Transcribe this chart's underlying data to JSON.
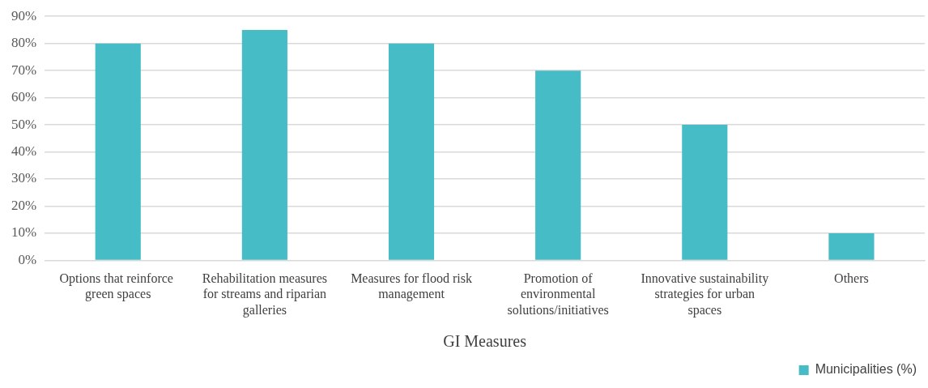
{
  "chart_data": {
    "type": "bar",
    "xlabel": "GI Measures",
    "categories": [
      "Options that reinforce  green spaces",
      "Rehabilitation measures for streams and riparian galleries",
      "Measures for flood risk management",
      "Promotion of environmental solutions/initiatives",
      "Innovative sustainability strategies for urban spaces",
      "Others"
    ],
    "series": [
      {
        "name": "Municipalities (%)",
        "color": "#45bcc6",
        "values": [
          80,
          85,
          80,
          70,
          50,
          10
        ]
      }
    ],
    "ylim": [
      0,
      90
    ],
    "yticks": [
      {
        "value": 0,
        "label": "0%"
      },
      {
        "value": 10,
        "label": "10%"
      },
      {
        "value": 20,
        "label": "20%"
      },
      {
        "value": 30,
        "label": "30%"
      },
      {
        "value": 40,
        "label": "40%"
      },
      {
        "value": 50,
        "label": "50%"
      },
      {
        "value": 60,
        "label": "60%"
      },
      {
        "value": 70,
        "label": "70%"
      },
      {
        "value": 80,
        "label": "80%"
      },
      {
        "value": 90,
        "label": "90%"
      }
    ],
    "grid": "y",
    "legend": "bottom right"
  }
}
